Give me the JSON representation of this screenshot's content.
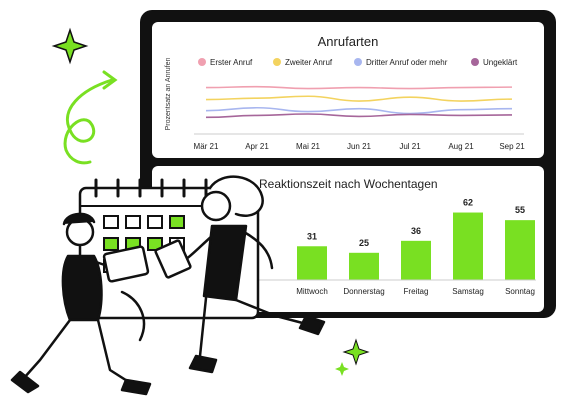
{
  "colors": {
    "accent": "#79e022",
    "frame": "#111111",
    "panel": "#ffffff"
  },
  "line_panel": {
    "title": "Anrufarten",
    "ylabel": "Prozentsatz an Anrufen",
    "legend": [
      {
        "label": "Erster Anruf",
        "color": "#f0a0b0"
      },
      {
        "label": "Zweiter Anruf",
        "color": "#f3d35f"
      },
      {
        "label": "Dritter Anruf oder mehr",
        "color": "#a8b6ef"
      },
      {
        "label": "Ungeklärt",
        "color": "#a6669a"
      }
    ]
  },
  "bar_panel": {
    "title": "Reaktionszeit nach Wochentagen"
  },
  "chart_data": [
    {
      "type": "line",
      "title": "Anrufarten",
      "ylabel": "Prozentsatz an Anrufen",
      "x": [
        "Mär 21",
        "Apr 21",
        "Mai 21",
        "Jun 21",
        "Jul 21",
        "Aug 21",
        "Sep 21"
      ],
      "series": [
        {
          "name": "Erster Anruf",
          "values": [
            80,
            82,
            78,
            80,
            78,
            80,
            81
          ]
        },
        {
          "name": "Zweiter Anruf",
          "values": [
            55,
            58,
            62,
            52,
            60,
            52,
            56
          ]
        },
        {
          "name": "Dritter Anruf oder mehr",
          "values": [
            32,
            38,
            30,
            36,
            26,
            34,
            36
          ]
        },
        {
          "name": "Ungeklärt",
          "values": [
            18,
            22,
            25,
            20,
            24,
            22,
            23
          ]
        }
      ],
      "ylim": [
        0,
        100
      ],
      "legend": "top"
    },
    {
      "type": "bar",
      "title": "Reaktionszeit nach Wochentagen",
      "categories": [
        "Mittwoch",
        "Donnerstag",
        "Freitag",
        "Samstag",
        "Sonntag"
      ],
      "values": [
        31,
        25,
        36,
        62,
        55
      ],
      "ylim": [
        0,
        68
      ]
    }
  ]
}
